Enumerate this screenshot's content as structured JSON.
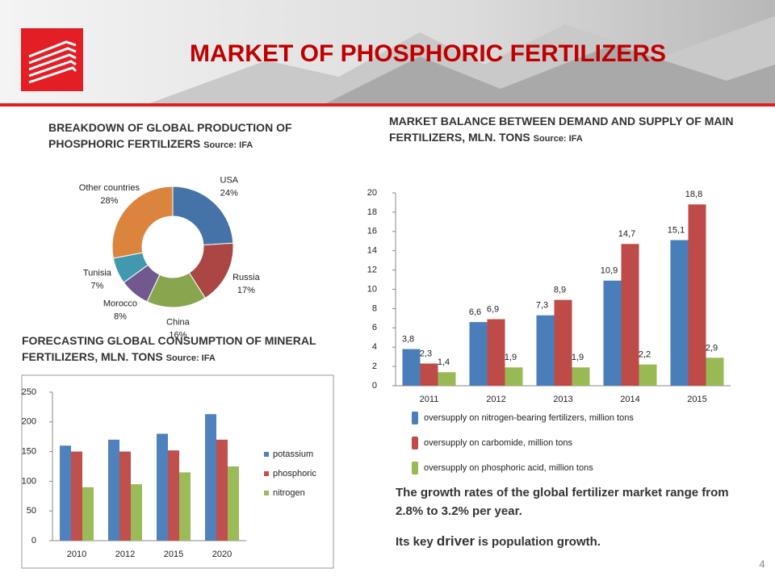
{
  "header": {
    "title": "MARKET OF PHOSPHORIC  FERTILIZERS"
  },
  "page_number": "4",
  "chart_data": [
    {
      "type": "donut",
      "title": "BREAKDOWN OF GLOBAL PRODUCTION OF PHOSPHORIC FERTILIZERS",
      "source": "Source: IFA",
      "categories": [
        "USA",
        "Russia",
        "China",
        "Morocco",
        "Tunisia",
        "Other countries"
      ],
      "values": [
        24,
        17,
        16,
        8,
        7,
        28
      ],
      "value_labels": [
        "24%",
        "17%",
        "16%",
        "8%",
        "7%",
        "28%"
      ],
      "colors": [
        "#4572a7",
        "#aa4643",
        "#89a54e",
        "#71588f",
        "#4198af",
        "#db843d"
      ]
    },
    {
      "type": "bar",
      "title": "MARKET BALANCE BETWEEN DEMAND AND SUPPLY OF MAIN FERTILIZERS, MLN. TONS",
      "source": "Source: IFA",
      "categories": [
        "2011",
        "2012",
        "2013",
        "2014",
        "2015"
      ],
      "series": [
        {
          "name": "oversupply on nitrogen-bearing fertilizers, million tons",
          "color": "#4a7ebb",
          "values": [
            3.8,
            6.6,
            7.3,
            10.9,
            15.1
          ],
          "value_labels": [
            "3,8",
            "6,6",
            "7,3",
            "10,9",
            "15,1"
          ]
        },
        {
          "name": "oversupply on carbomide, million tons",
          "color": "#be4b48",
          "values": [
            2.3,
            6.9,
            8.9,
            14.7,
            18.8
          ],
          "value_labels": [
            "2,3",
            "6,9",
            "8,9",
            "14,7",
            "18,8"
          ]
        },
        {
          "name": "oversupply on phosphoric acid, million tons",
          "color": "#98b954",
          "values": [
            1.4,
            1.9,
            1.9,
            2.2,
            2.9
          ],
          "value_labels": [
            "1,4",
            "1,9",
            "1,9",
            "2,2",
            "2,9"
          ]
        }
      ],
      "ylim": [
        0,
        20
      ],
      "yticks": [
        0,
        2,
        4,
        6,
        8,
        10,
        12,
        14,
        16,
        18,
        20
      ],
      "grid": false
    },
    {
      "type": "bar",
      "title": "FORECASTING GLOBAL CONSUMPTION OF MINERAL FERTILIZERS, MLN. TONS",
      "source": "Source: IFA",
      "categories": [
        "2010",
        "2012",
        "2015",
        "2020"
      ],
      "series": [
        {
          "name": "potassium",
          "color": "#4f81bd",
          "values": [
            160,
            170,
            180,
            213
          ]
        },
        {
          "name": "phosphoric",
          "color": "#c0504d",
          "values": [
            150,
            150,
            152,
            170
          ]
        },
        {
          "name": "nitrogen",
          "color": "#9bbb59",
          "values": [
            90,
            95,
            115,
            125
          ]
        }
      ],
      "ylim": [
        0,
        250
      ],
      "yticks": [
        0,
        50,
        100,
        150,
        200,
        250
      ],
      "grid": false
    }
  ],
  "notes": [
    "The growth rates of the global fertilizer market range from 2.8% to 3.2% per year.",
    [
      "Its key ",
      "driver",
      " is population growth."
    ]
  ]
}
